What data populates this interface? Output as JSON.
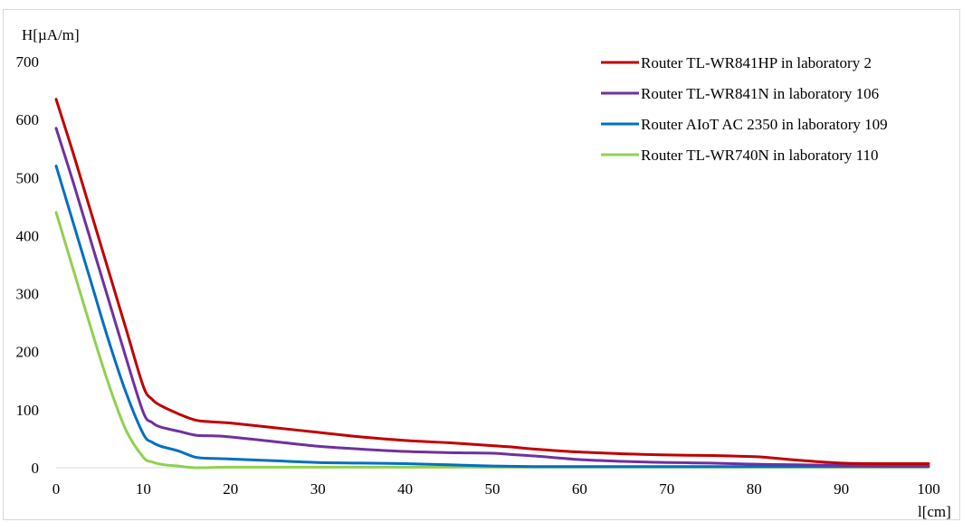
{
  "chart_data": {
    "type": "line",
    "title": "",
    "xlabel": "l[cm]",
    "ylabel": "H[µA/m]",
    "xlim": [
      0,
      100
    ],
    "ylim": [
      0,
      700
    ],
    "x_ticks": [
      "0",
      "10",
      "20",
      "30",
      "40",
      "50",
      "60",
      "70",
      "80",
      "90",
      "100"
    ],
    "y_ticks": [
      "0",
      "100",
      "200",
      "300",
      "400",
      "500",
      "600",
      "700"
    ],
    "grid": false,
    "legend_position": "top-right",
    "series": [
      {
        "name": "Router TL-WR841HP in laboratory 2",
        "color": "#c00000",
        "x": [
          0,
          2,
          4,
          6,
          8,
          10,
          11,
          12,
          14,
          16,
          18,
          20,
          25,
          30,
          35,
          40,
          45,
          50,
          52,
          55,
          60,
          65,
          70,
          75,
          80,
          82,
          85,
          90,
          95,
          100
        ],
        "y": [
          635,
          540,
          440,
          340,
          240,
          140,
          118,
          107,
          93,
          82,
          79,
          77,
          69,
          61,
          53,
          47,
          43,
          38,
          36,
          32,
          27,
          24,
          22,
          21,
          19,
          17,
          13,
          8,
          7,
          7
        ]
      },
      {
        "name": "Router TL-WR841N in laboratory 106",
        "color": "#7030a0",
        "x": [
          0,
          2,
          4,
          6,
          8,
          10,
          11,
          12,
          14,
          16,
          18,
          20,
          25,
          30,
          35,
          40,
          45,
          50,
          52,
          55,
          60,
          65,
          70,
          75,
          80,
          85,
          90,
          95,
          100
        ],
        "y": [
          585,
          490,
          390,
          290,
          190,
          95,
          78,
          70,
          63,
          56,
          55,
          53,
          45,
          37,
          32,
          28,
          26,
          25,
          23,
          20,
          14,
          11,
          9,
          8,
          6,
          5,
          4,
          3,
          3
        ]
      },
      {
        "name": "Router AIoT AC 2350 in laboratory 109",
        "color": "#0070c0",
        "x": [
          0,
          2,
          4,
          6,
          8,
          10,
          11,
          12,
          14,
          16,
          18,
          20,
          25,
          30,
          35,
          40,
          45,
          50,
          55,
          60,
          70,
          80,
          90,
          100
        ],
        "y": [
          520,
          420,
          320,
          220,
          130,
          58,
          44,
          37,
          29,
          18,
          16,
          15,
          12,
          9,
          8,
          7,
          5,
          3,
          2,
          2,
          2,
          2,
          2,
          2
        ]
      },
      {
        "name": "Router TL-WR740N in laboratory 110",
        "color": "#92d050",
        "x": [
          0,
          2,
          4,
          6,
          8,
          10,
          11,
          12,
          13,
          14,
          15,
          16,
          17,
          20,
          30,
          40,
          50,
          60,
          70,
          80,
          90,
          100
        ],
        "y": [
          440,
          340,
          240,
          145,
          65,
          18,
          10,
          6,
          4,
          3,
          1,
          0,
          0,
          1,
          1,
          1,
          1,
          1,
          1,
          1,
          1,
          1
        ]
      }
    ]
  }
}
